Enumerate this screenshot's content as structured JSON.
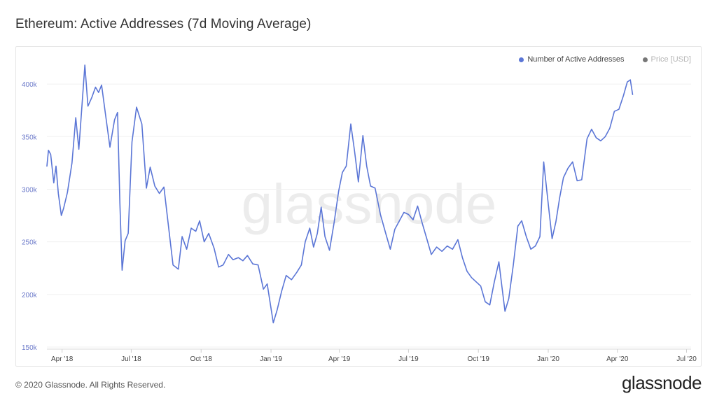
{
  "header": {
    "title": "Ethereum: Active Addresses (7d Moving Average)"
  },
  "legend": {
    "items": [
      {
        "label": "Number of Active Addresses",
        "color": "#5b76d6",
        "active": true
      },
      {
        "label": "Price [USD]",
        "color": "#777777",
        "active": false
      }
    ]
  },
  "watermark": {
    "text": "glassnode"
  },
  "footer": {
    "copyright": "© 2020 Glassnode. All Rights Reserved.",
    "logo": "glassnode"
  },
  "chart_data": {
    "type": "line",
    "title": "Ethereum: Active Addresses (7d Moving Average)",
    "xlabel": "",
    "ylabel": "",
    "ylim": [
      148000,
      422000
    ],
    "xlim": [
      "2018-03-12",
      "2020-07-07"
    ],
    "grid": true,
    "legend_position": "top-right",
    "y_ticks": [
      {
        "value": 150000,
        "label": "150k"
      },
      {
        "value": 200000,
        "label": "200k"
      },
      {
        "value": 250000,
        "label": "250k"
      },
      {
        "value": 300000,
        "label": "300k"
      },
      {
        "value": 350000,
        "label": "350k"
      },
      {
        "value": 400000,
        "label": "400k"
      }
    ],
    "x_ticks": [
      {
        "date": "2018-04-01",
        "label": "Apr '18"
      },
      {
        "date": "2018-07-01",
        "label": "Jul '18"
      },
      {
        "date": "2018-10-01",
        "label": "Oct '18"
      },
      {
        "date": "2019-01-01",
        "label": "Jan '19"
      },
      {
        "date": "2019-04-01",
        "label": "Apr '19"
      },
      {
        "date": "2019-07-01",
        "label": "Jul '19"
      },
      {
        "date": "2019-10-01",
        "label": "Oct '19"
      },
      {
        "date": "2020-01-01",
        "label": "Jan '20"
      },
      {
        "date": "2020-04-01",
        "label": "Apr '20"
      },
      {
        "date": "2020-07-01",
        "label": "Jul '20"
      }
    ],
    "series": [
      {
        "name": "Number of Active Addresses",
        "color": "#5b76d6",
        "points": [
          [
            "2018-03-12",
            322000
          ],
          [
            "2018-03-14",
            337000
          ],
          [
            "2018-03-17",
            333000
          ],
          [
            "2018-03-21",
            306000
          ],
          [
            "2018-03-24",
            322000
          ],
          [
            "2018-03-27",
            296000
          ],
          [
            "2018-03-31",
            275000
          ],
          [
            "2018-04-03",
            282000
          ],
          [
            "2018-04-08",
            297000
          ],
          [
            "2018-04-14",
            325000
          ],
          [
            "2018-04-19",
            368000
          ],
          [
            "2018-04-23",
            338000
          ],
          [
            "2018-04-27",
            378000
          ],
          [
            "2018-05-01",
            418000
          ],
          [
            "2018-05-05",
            379000
          ],
          [
            "2018-05-10",
            387000
          ],
          [
            "2018-05-15",
            397000
          ],
          [
            "2018-05-19",
            392000
          ],
          [
            "2018-05-23",
            399000
          ],
          [
            "2018-05-28",
            372000
          ],
          [
            "2018-06-03",
            340000
          ],
          [
            "2018-06-09",
            366000
          ],
          [
            "2018-06-13",
            373000
          ],
          [
            "2018-06-16",
            287000
          ],
          [
            "2018-06-19",
            223000
          ],
          [
            "2018-06-23",
            251000
          ],
          [
            "2018-06-27",
            258000
          ],
          [
            "2018-07-02",
            345000
          ],
          [
            "2018-07-08",
            378000
          ],
          [
            "2018-07-15",
            362000
          ],
          [
            "2018-07-21",
            301000
          ],
          [
            "2018-07-26",
            321000
          ],
          [
            "2018-08-01",
            303000
          ],
          [
            "2018-08-07",
            296000
          ],
          [
            "2018-08-13",
            302000
          ],
          [
            "2018-08-19",
            265000
          ],
          [
            "2018-08-25",
            228000
          ],
          [
            "2018-09-01",
            224000
          ],
          [
            "2018-09-06",
            255000
          ],
          [
            "2018-09-12",
            243000
          ],
          [
            "2018-09-18",
            263000
          ],
          [
            "2018-09-24",
            260000
          ],
          [
            "2018-09-29",
            270000
          ],
          [
            "2018-10-05",
            250000
          ],
          [
            "2018-10-11",
            258000
          ],
          [
            "2018-10-18",
            244000
          ],
          [
            "2018-10-24",
            226000
          ],
          [
            "2018-10-30",
            228000
          ],
          [
            "2018-11-06",
            238000
          ],
          [
            "2018-11-12",
            233000
          ],
          [
            "2018-11-19",
            235000
          ],
          [
            "2018-11-25",
            232000
          ],
          [
            "2018-12-01",
            237000
          ],
          [
            "2018-12-08",
            229000
          ],
          [
            "2018-12-15",
            228000
          ],
          [
            "2018-12-22",
            205000
          ],
          [
            "2018-12-27",
            210000
          ],
          [
            "2019-01-04",
            173000
          ],
          [
            "2019-01-09",
            185000
          ],
          [
            "2019-01-15",
            203000
          ],
          [
            "2019-01-21",
            218000
          ],
          [
            "2019-01-28",
            214000
          ],
          [
            "2019-02-04",
            221000
          ],
          [
            "2019-02-10",
            228000
          ],
          [
            "2019-02-15",
            250000
          ],
          [
            "2019-02-21",
            263000
          ],
          [
            "2019-02-26",
            245000
          ],
          [
            "2019-03-03",
            258000
          ],
          [
            "2019-03-08",
            283000
          ],
          [
            "2019-03-13",
            255000
          ],
          [
            "2019-03-19",
            242000
          ],
          [
            "2019-03-25",
            268000
          ],
          [
            "2019-03-31",
            298000
          ],
          [
            "2019-04-05",
            316000
          ],
          [
            "2019-04-10",
            322000
          ],
          [
            "2019-04-16",
            362000
          ],
          [
            "2019-04-21",
            336000
          ],
          [
            "2019-04-26",
            307000
          ],
          [
            "2019-05-02",
            351000
          ],
          [
            "2019-05-07",
            322000
          ],
          [
            "2019-05-12",
            303000
          ],
          [
            "2019-05-18",
            301000
          ],
          [
            "2019-05-25",
            276000
          ],
          [
            "2019-06-01",
            258000
          ],
          [
            "2019-06-07",
            243000
          ],
          [
            "2019-06-13",
            262000
          ],
          [
            "2019-06-19",
            270000
          ],
          [
            "2019-06-25",
            278000
          ],
          [
            "2019-07-01",
            276000
          ],
          [
            "2019-07-07",
            271000
          ],
          [
            "2019-07-13",
            284000
          ],
          [
            "2019-07-19",
            268000
          ],
          [
            "2019-07-25",
            253000
          ],
          [
            "2019-07-31",
            238000
          ],
          [
            "2019-08-07",
            245000
          ],
          [
            "2019-08-14",
            241000
          ],
          [
            "2019-08-21",
            246000
          ],
          [
            "2019-08-28",
            243000
          ],
          [
            "2019-09-04",
            252000
          ],
          [
            "2019-09-10",
            235000
          ],
          [
            "2019-09-16",
            222000
          ],
          [
            "2019-09-22",
            216000
          ],
          [
            "2019-09-28",
            212000
          ],
          [
            "2019-10-04",
            208000
          ],
          [
            "2019-10-10",
            193000
          ],
          [
            "2019-10-16",
            190000
          ],
          [
            "2019-10-22",
            212000
          ],
          [
            "2019-10-28",
            231000
          ],
          [
            "2019-11-01",
            207000
          ],
          [
            "2019-11-05",
            184000
          ],
          [
            "2019-11-10",
            196000
          ],
          [
            "2019-11-16",
            228000
          ],
          [
            "2019-11-22",
            265000
          ],
          [
            "2019-11-27",
            270000
          ],
          [
            "2019-12-03",
            255000
          ],
          [
            "2019-12-09",
            243000
          ],
          [
            "2019-12-15",
            246000
          ],
          [
            "2019-12-21",
            255000
          ],
          [
            "2019-12-26",
            326000
          ],
          [
            "2020-01-01",
            286000
          ],
          [
            "2020-01-06",
            253000
          ],
          [
            "2020-01-11",
            269000
          ],
          [
            "2020-01-16",
            292000
          ],
          [
            "2020-01-21",
            311000
          ],
          [
            "2020-01-27",
            320000
          ],
          [
            "2020-02-02",
            326000
          ],
          [
            "2020-02-08",
            308000
          ],
          [
            "2020-02-14",
            309000
          ],
          [
            "2020-02-21",
            348000
          ],
          [
            "2020-02-27",
            357000
          ],
          [
            "2020-03-04",
            349000
          ],
          [
            "2020-03-10",
            346000
          ],
          [
            "2020-03-16",
            350000
          ],
          [
            "2020-03-22",
            358000
          ],
          [
            "2020-03-28",
            374000
          ],
          [
            "2020-04-03",
            376000
          ],
          [
            "2020-04-09",
            389000
          ],
          [
            "2020-04-14",
            402000
          ],
          [
            "2020-04-18",
            404000
          ],
          [
            "2020-04-21",
            390000
          ]
        ]
      }
    ]
  }
}
